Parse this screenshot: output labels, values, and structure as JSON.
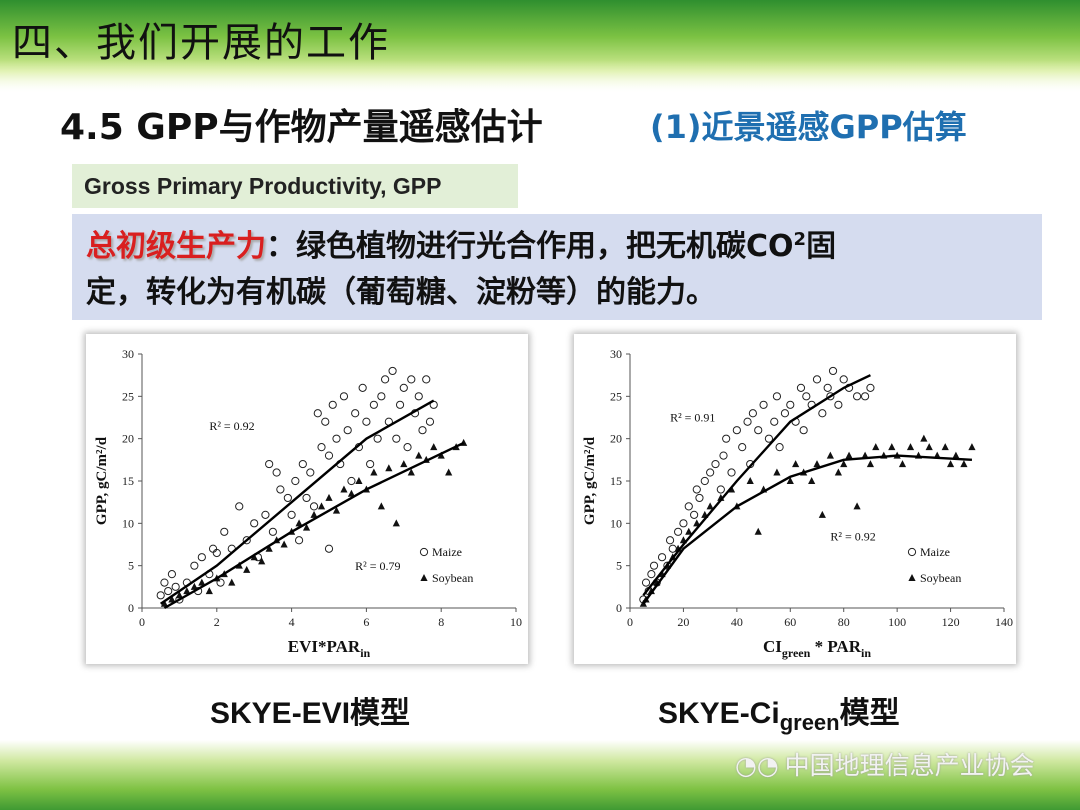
{
  "slide": {
    "title": "四、我们开展的工作",
    "section_title": "4.5 GPP与作物产量遥感估计",
    "section_subtitle": "(1)近景遥感GPP估算",
    "term_en": "Gross Primary Productivity, GPP",
    "definition": {
      "term": "总初级生产力",
      "line1": "：绿色植物进行光合作用，把无机碳CO",
      "sup": "2",
      "line1_end": "固",
      "line2": "定，转化为有机碳（葡萄糖、淀粉等）的能力。"
    },
    "watermark": "中国地理信息产业协会",
    "watermark_icon": "wechat-icon"
  },
  "captions": {
    "left": "SKYE-EVI模型",
    "right_prefix": "SKYE-Ci",
    "right_sub": "green",
    "right_suffix": "模型"
  },
  "colors": {
    "section_subtitle": "#1f6fb0",
    "definition_term": "#d91f1f",
    "term_box_bg": "#e2efd7",
    "definition_box_bg": "#d5dcef",
    "band_green": "#7cc243"
  },
  "chart_data": [
    {
      "type": "scatter",
      "ylabel": "GPP, gC/m²/d",
      "xlabel": "EVI*PAR",
      "xlabel_sub": "in",
      "xlim": [
        0,
        10
      ],
      "ylim": [
        0,
        30
      ],
      "xticks": [
        "0",
        "2",
        "4",
        "6",
        "8",
        "10"
      ],
      "yticks": [
        "0",
        "5",
        "10",
        "15",
        "20",
        "25",
        "30"
      ],
      "legend": [
        "Maize",
        "Soybean"
      ],
      "legend_position": "bottom-right",
      "annotations": [
        {
          "text": "R² = 0.92",
          "x": 1.8,
          "y": 21
        },
        {
          "text": "R² = 0.79",
          "x": 5.7,
          "y": 4.5
        }
      ],
      "series": [
        {
          "name": "Maize",
          "marker": "open-circle",
          "points": [
            [
              0.5,
              1.5
            ],
            [
              0.6,
              3
            ],
            [
              0.7,
              2
            ],
            [
              0.8,
              4
            ],
            [
              0.9,
              2.5
            ],
            [
              1.0,
              1
            ],
            [
              1.2,
              3
            ],
            [
              1.4,
              5
            ],
            [
              1.5,
              2
            ],
            [
              1.6,
              6
            ],
            [
              1.8,
              4
            ],
            [
              1.9,
              7
            ],
            [
              2.0,
              6.5
            ],
            [
              2.1,
              3
            ],
            [
              2.2,
              9
            ],
            [
              2.4,
              7
            ],
            [
              2.6,
              12
            ],
            [
              2.8,
              8
            ],
            [
              3.0,
              10
            ],
            [
              3.1,
              6
            ],
            [
              3.3,
              11
            ],
            [
              3.4,
              17
            ],
            [
              3.5,
              9
            ],
            [
              3.6,
              16
            ],
            [
              3.7,
              14
            ],
            [
              3.9,
              13
            ],
            [
              4.0,
              11
            ],
            [
              4.1,
              15
            ],
            [
              4.2,
              8
            ],
            [
              4.3,
              17
            ],
            [
              4.4,
              13
            ],
            [
              4.5,
              16
            ],
            [
              4.6,
              12
            ],
            [
              4.7,
              23
            ],
            [
              4.8,
              19
            ],
            [
              4.9,
              22
            ],
            [
              5.0,
              18
            ],
            [
              5.0,
              7
            ],
            [
              5.1,
              24
            ],
            [
              5.2,
              20
            ],
            [
              5.3,
              17
            ],
            [
              5.4,
              25
            ],
            [
              5.5,
              21
            ],
            [
              5.6,
              15
            ],
            [
              5.7,
              23
            ],
            [
              5.8,
              19
            ],
            [
              5.9,
              26
            ],
            [
              6.0,
              22
            ],
            [
              6.1,
              17
            ],
            [
              6.2,
              24
            ],
            [
              6.3,
              20
            ],
            [
              6.4,
              25
            ],
            [
              6.5,
              27
            ],
            [
              6.6,
              22
            ],
            [
              6.7,
              28
            ],
            [
              6.8,
              20
            ],
            [
              6.9,
              24
            ],
            [
              7.0,
              26
            ],
            [
              7.1,
              19
            ],
            [
              7.2,
              27
            ],
            [
              7.3,
              23
            ],
            [
              7.4,
              25
            ],
            [
              7.5,
              21
            ],
            [
              7.6,
              27
            ],
            [
              7.7,
              22
            ],
            [
              7.8,
              24
            ]
          ]
        },
        {
          "name": "Soybean",
          "marker": "filled-triangle",
          "points": [
            [
              0.6,
              0.5
            ],
            [
              0.8,
              1
            ],
            [
              1.0,
              1.5
            ],
            [
              1.2,
              2
            ],
            [
              1.4,
              2.5
            ],
            [
              1.6,
              3
            ],
            [
              1.8,
              2
            ],
            [
              2.0,
              3.5
            ],
            [
              2.2,
              4
            ],
            [
              2.4,
              3
            ],
            [
              2.6,
              5
            ],
            [
              2.8,
              4.5
            ],
            [
              3.0,
              6
            ],
            [
              3.2,
              5.5
            ],
            [
              3.4,
              7
            ],
            [
              3.6,
              8
            ],
            [
              3.8,
              7.5
            ],
            [
              4.0,
              9
            ],
            [
              4.2,
              10
            ],
            [
              4.4,
              9.5
            ],
            [
              4.6,
              11
            ],
            [
              4.8,
              12
            ],
            [
              5.0,
              13
            ],
            [
              5.2,
              11.5
            ],
            [
              5.4,
              14
            ],
            [
              5.6,
              13.5
            ],
            [
              5.8,
              15
            ],
            [
              6.0,
              14
            ],
            [
              6.2,
              16
            ],
            [
              6.4,
              12
            ],
            [
              6.6,
              16.5
            ],
            [
              6.8,
              10
            ],
            [
              7.0,
              17
            ],
            [
              7.2,
              16
            ],
            [
              7.4,
              18
            ],
            [
              7.6,
              17.5
            ],
            [
              7.8,
              19
            ],
            [
              8.0,
              18
            ],
            [
              8.2,
              16
            ],
            [
              8.4,
              19
            ],
            [
              8.6,
              19.5
            ]
          ]
        }
      ],
      "trendlines": [
        {
          "series": "Maize",
          "points": [
            [
              0.5,
              0.5
            ],
            [
              2,
              5
            ],
            [
              4,
              12.5
            ],
            [
              6,
              20
            ],
            [
              7.8,
              24.5
            ]
          ]
        },
        {
          "series": "Soybean",
          "points": [
            [
              0.6,
              0
            ],
            [
              2,
              3.5
            ],
            [
              4,
              9
            ],
            [
              6,
              14
            ],
            [
              8.6,
              19.5
            ]
          ]
        }
      ]
    },
    {
      "type": "scatter",
      "ylabel": "GPP, gC/m²/d",
      "xlabel": "CI",
      "xlabel_sub1": "green",
      "xlabel_mid": " * PAR",
      "xlabel_sub2": "in",
      "xlim": [
        0,
        140
      ],
      "ylim": [
        0,
        30
      ],
      "xticks": [
        "0",
        "20",
        "40",
        "60",
        "80",
        "100",
        "120",
        "140"
      ],
      "yticks": [
        "0",
        "5",
        "10",
        "15",
        "20",
        "25",
        "30"
      ],
      "legend": [
        "Maize",
        "Soybean"
      ],
      "legend_position": "bottom-right",
      "annotations": [
        {
          "text": "R² = 0.91",
          "x": 15,
          "y": 22
        },
        {
          "text": "R² = 0.92",
          "x": 75,
          "y": 8
        }
      ],
      "series": [
        {
          "name": "Maize",
          "marker": "open-circle",
          "points": [
            [
              5,
              1
            ],
            [
              6,
              3
            ],
            [
              7,
              2
            ],
            [
              8,
              4
            ],
            [
              9,
              5
            ],
            [
              10,
              3
            ],
            [
              12,
              6
            ],
            [
              14,
              5
            ],
            [
              15,
              8
            ],
            [
              16,
              7
            ],
            [
              18,
              9
            ],
            [
              20,
              10
            ],
            [
              22,
              12
            ],
            [
              24,
              11
            ],
            [
              25,
              14
            ],
            [
              26,
              13
            ],
            [
              28,
              15
            ],
            [
              30,
              16
            ],
            [
              32,
              17
            ],
            [
              34,
              14
            ],
            [
              35,
              18
            ],
            [
              36,
              20
            ],
            [
              38,
              16
            ],
            [
              40,
              21
            ],
            [
              42,
              19
            ],
            [
              44,
              22
            ],
            [
              45,
              17
            ],
            [
              46,
              23
            ],
            [
              48,
              21
            ],
            [
              50,
              24
            ],
            [
              52,
              20
            ],
            [
              54,
              22
            ],
            [
              55,
              25
            ],
            [
              56,
              19
            ],
            [
              58,
              23
            ],
            [
              60,
              24
            ],
            [
              62,
              22
            ],
            [
              64,
              26
            ],
            [
              65,
              21
            ],
            [
              66,
              25
            ],
            [
              68,
              24
            ],
            [
              70,
              27
            ],
            [
              72,
              23
            ],
            [
              74,
              26
            ],
            [
              75,
              25
            ],
            [
              76,
              28
            ],
            [
              78,
              24
            ],
            [
              80,
              27
            ],
            [
              82,
              26
            ],
            [
              85,
              25
            ],
            [
              88,
              25
            ],
            [
              90,
              26
            ]
          ]
        },
        {
          "name": "Soybean",
          "marker": "filled-triangle",
          "points": [
            [
              5,
              0.5
            ],
            [
              6,
              1
            ],
            [
              8,
              2
            ],
            [
              10,
              3
            ],
            [
              12,
              4
            ],
            [
              14,
              5
            ],
            [
              16,
              6
            ],
            [
              18,
              7
            ],
            [
              20,
              8
            ],
            [
              22,
              9
            ],
            [
              25,
              10
            ],
            [
              28,
              11
            ],
            [
              30,
              12
            ],
            [
              34,
              13
            ],
            [
              38,
              14
            ],
            [
              40,
              12
            ],
            [
              45,
              15
            ],
            [
              48,
              9
            ],
            [
              50,
              14
            ],
            [
              55,
              16
            ],
            [
              60,
              15
            ],
            [
              62,
              17
            ],
            [
              65,
              16
            ],
            [
              68,
              15
            ],
            [
              70,
              17
            ],
            [
              72,
              11
            ],
            [
              75,
              18
            ],
            [
              78,
              16
            ],
            [
              80,
              17
            ],
            [
              82,
              18
            ],
            [
              85,
              12
            ],
            [
              88,
              18
            ],
            [
              90,
              17
            ],
            [
              92,
              19
            ],
            [
              95,
              18
            ],
            [
              98,
              19
            ],
            [
              100,
              18
            ],
            [
              102,
              17
            ],
            [
              105,
              19
            ],
            [
              108,
              18
            ],
            [
              110,
              20
            ],
            [
              112,
              19
            ],
            [
              115,
              18
            ],
            [
              118,
              19
            ],
            [
              120,
              17
            ],
            [
              122,
              18
            ],
            [
              125,
              17
            ],
            [
              128,
              19
            ]
          ]
        }
      ],
      "trendlines": [
        {
          "series": "Maize",
          "points": [
            [
              5,
              1.5
            ],
            [
              20,
              7.5
            ],
            [
              40,
              15
            ],
            [
              60,
              22
            ],
            [
              80,
              26
            ],
            [
              90,
              27.5
            ]
          ]
        },
        {
          "series": "Soybean",
          "points": [
            [
              5,
              0.5
            ],
            [
              20,
              7
            ],
            [
              40,
              12
            ],
            [
              60,
              15.5
            ],
            [
              80,
              17.5
            ],
            [
              100,
              18
            ],
            [
              128,
              17.5
            ]
          ]
        }
      ]
    }
  ]
}
